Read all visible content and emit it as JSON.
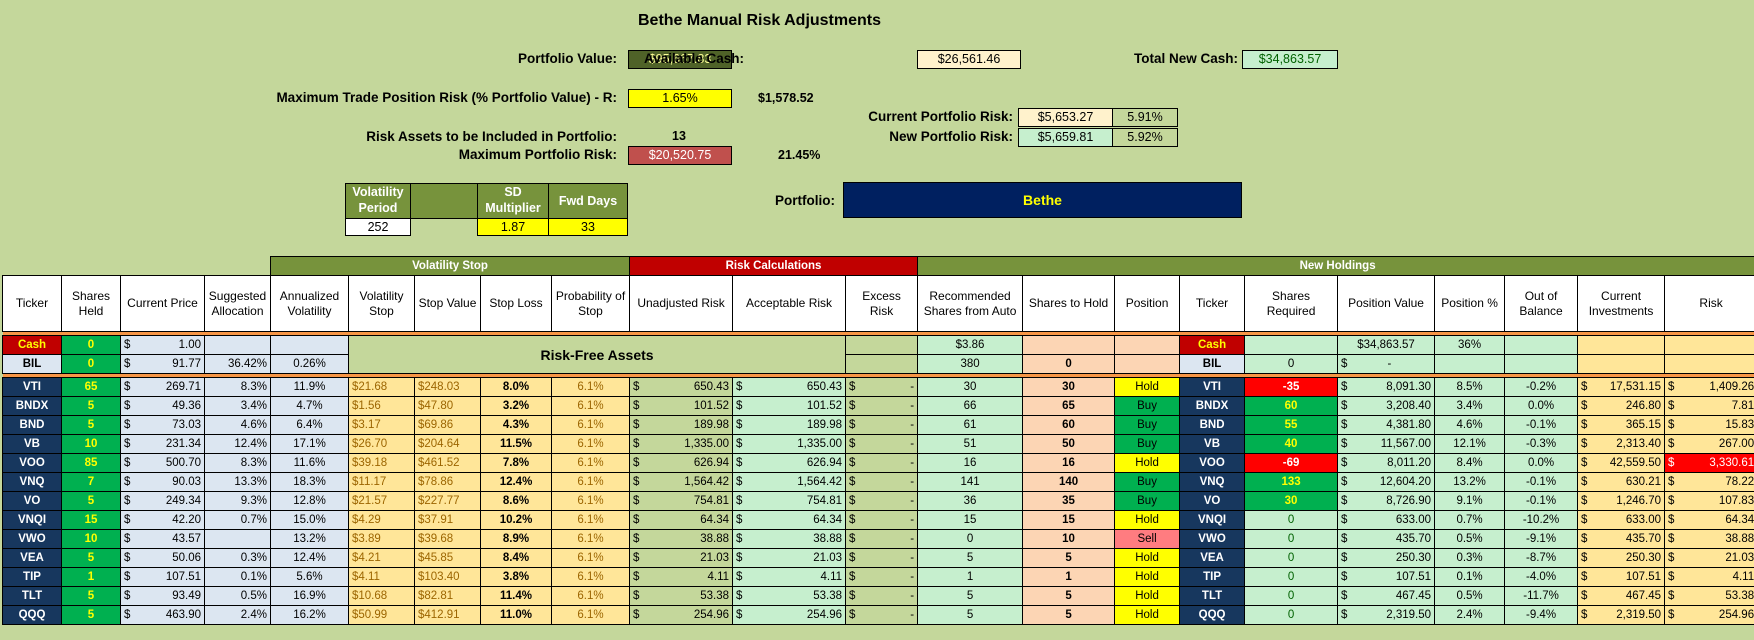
{
  "title": "Bethe Manual Risk Adjustments",
  "summary": {
    "portfolio_value_label": "Portfolio Value:",
    "portfolio_value": "$95,667.83",
    "available_cash_label": "Available Cash:",
    "available_cash": "$26,561.46",
    "total_new_cash_label": "Total New Cash:",
    "total_new_cash": "$34,863.57",
    "max_trade_risk_label": "Maximum Trade Position Risk (% Portfolio Value) - R:",
    "max_trade_risk_pct": "1.65%",
    "max_trade_risk_value": "$1,578.52",
    "current_risk_label": "Current Portfolio Risk:",
    "current_risk_value": "$5,653.27",
    "current_risk_pct": "5.91%",
    "new_risk_label": "New Portfolio Risk:",
    "new_risk_value": "$5,659.81",
    "new_risk_pct": "5.92%",
    "risk_assets_label": "Risk Assets to be Included in Portfolio:",
    "risk_assets_count": "13",
    "max_portfolio_risk_label": "Maximum Portfolio Risk:",
    "max_portfolio_risk_value": "$20,520.75",
    "max_portfolio_risk_pct": "21.45%",
    "portfolio_label": "Portfolio:",
    "portfolio_name": "Bethe"
  },
  "params": {
    "vol_period_label": "Volatility Period",
    "sd_mult_label": "SD Multiplier",
    "fwd_days_label": "Fwd Days",
    "vol_period": "252",
    "sd_mult": "1.87",
    "fwd_days": "33"
  },
  "groups": {
    "vol_stop": "Volatility Stop",
    "risk_calc": "Risk Calculations",
    "new_holdings": "New Holdings"
  },
  "headers": [
    "Ticker",
    "Shares Held",
    "Current Price",
    "Suggested Allocation",
    "Annualized Volatility",
    "Volatility Stop",
    "Stop Value",
    "Stop Loss",
    "Probability of Stop",
    "Unadjusted Risk",
    "Acceptable Risk",
    "Excess Risk",
    "Recommended Shares from Auto",
    "Shares to Hold",
    "Position",
    "Ticker",
    "Shares Required",
    "Position Value",
    "Position %",
    "Out of Balance",
    "Current Investments",
    "Risk"
  ],
  "risk_free_label": "Risk-Free Assets",
  "cash_row": {
    "ticker": "Cash",
    "shares": "0",
    "price": "1.00",
    "rec": "$3.86",
    "ticker2": "Cash",
    "pos_value": "$34,863.57",
    "pos_pct": "36%"
  },
  "bil_row": {
    "ticker": "BIL",
    "shares": "0",
    "price": "91.77",
    "alloc": "36.42%",
    "vol": "0.26%",
    "rec": "380",
    "hold": "0",
    "ticker2": "BIL",
    "req": "0",
    "pos_value": "-"
  },
  "dollar": "$",
  "rows": [
    {
      "t": "VTI",
      "sh": "65",
      "p": "269.71",
      "a": "8.3%",
      "v": "11.9%",
      "vs": "$21.68",
      "sv": "$248.03",
      "sl": "8.0%",
      "ps": "6.1%",
      "ur": "650.43",
      "ar": "650.43",
      "er": "-",
      "rec": "30",
      "hold": "30",
      "pos": "Hold",
      "req": "-35",
      "rq": "red",
      "pv": "8,091.30",
      "pp": "8.5%",
      "ob": "-0.2%",
      "ci": "17,531.15",
      "risk": "1,409.26",
      "rr": ""
    },
    {
      "t": "BNDX",
      "sh": "5",
      "p": "49.36",
      "a": "3.4%",
      "v": "4.7%",
      "vs": "$1.56",
      "sv": "$47.80",
      "sl": "3.2%",
      "ps": "6.1%",
      "ur": "101.52",
      "ar": "101.52",
      "er": "-",
      "rec": "66",
      "hold": "65",
      "pos": "Buy",
      "req": "60",
      "rq": "green",
      "pv": "3,208.40",
      "pp": "3.4%",
      "ob": "0.0%",
      "ci": "246.80",
      "risk": "7.81",
      "rr": ""
    },
    {
      "t": "BND",
      "sh": "5",
      "p": "73.03",
      "a": "4.6%",
      "v": "6.4%",
      "vs": "$3.17",
      "sv": "$69.86",
      "sl": "4.3%",
      "ps": "6.1%",
      "ur": "189.98",
      "ar": "189.98",
      "er": "-",
      "rec": "61",
      "hold": "60",
      "pos": "Buy",
      "req": "55",
      "rq": "green",
      "pv": "4,381.80",
      "pp": "4.6%",
      "ob": "-0.1%",
      "ci": "365.15",
      "risk": "15.83",
      "rr": ""
    },
    {
      "t": "VB",
      "sh": "10",
      "p": "231.34",
      "a": "12.4%",
      "v": "17.1%",
      "vs": "$26.70",
      "sv": "$204.64",
      "sl": "11.5%",
      "ps": "6.1%",
      "ur": "1,335.00",
      "ar": "1,335.00",
      "er": "-",
      "rec": "51",
      "hold": "50",
      "pos": "Buy",
      "req": "40",
      "rq": "green",
      "pv": "11,567.00",
      "pp": "12.1%",
      "ob": "-0.3%",
      "ci": "2,313.40",
      "risk": "267.00",
      "rr": ""
    },
    {
      "t": "VOO",
      "sh": "85",
      "p": "500.70",
      "a": "8.3%",
      "v": "11.6%",
      "vs": "$39.18",
      "sv": "$461.52",
      "sl": "7.8%",
      "ps": "6.1%",
      "ur": "626.94",
      "ar": "626.94",
      "er": "-",
      "rec": "16",
      "hold": "16",
      "pos": "Hold",
      "req": "-69",
      "rq": "red",
      "pv": "8,011.20",
      "pp": "8.4%",
      "ob": "0.0%",
      "ci": "42,559.50",
      "risk": "3,330.61",
      "rr": "red"
    },
    {
      "t": "VNQ",
      "sh": "7",
      "p": "90.03",
      "a": "13.3%",
      "v": "18.3%",
      "vs": "$11.17",
      "sv": "$78.86",
      "sl": "12.4%",
      "ps": "6.1%",
      "ur": "1,564.42",
      "ar": "1,564.42",
      "er": "-",
      "rec": "141",
      "hold": "140",
      "pos": "Buy",
      "req": "133",
      "rq": "green",
      "pv": "12,604.20",
      "pp": "13.2%",
      "ob": "-0.1%",
      "ci": "630.21",
      "risk": "78.22",
      "rr": ""
    },
    {
      "t": "VO",
      "sh": "5",
      "p": "249.34",
      "a": "9.3%",
      "v": "12.8%",
      "vs": "$21.57",
      "sv": "$227.77",
      "sl": "8.6%",
      "ps": "6.1%",
      "ur": "754.81",
      "ar": "754.81",
      "er": "-",
      "rec": "36",
      "hold": "35",
      "pos": "Buy",
      "req": "30",
      "rq": "green",
      "pv": "8,726.90",
      "pp": "9.1%",
      "ob": "-0.1%",
      "ci": "1,246.70",
      "risk": "107.83",
      "rr": ""
    },
    {
      "t": "VNQI",
      "sh": "15",
      "p": "42.20",
      "a": "0.7%",
      "v": "15.0%",
      "vs": "$4.29",
      "sv": "$37.91",
      "sl": "10.2%",
      "ps": "6.1%",
      "ur": "64.34",
      "ar": "64.34",
      "er": "-",
      "rec": "15",
      "hold": "15",
      "pos": "Hold",
      "req": "0",
      "rq": "",
      "pv": "633.00",
      "pp": "0.7%",
      "ob": "-10.2%",
      "ci": "633.00",
      "risk": "64.34",
      "rr": ""
    },
    {
      "t": "VWO",
      "sh": "10",
      "p": "43.57",
      "a": "",
      "v": "13.2%",
      "vs": "$3.89",
      "sv": "$39.68",
      "sl": "8.9%",
      "ps": "6.1%",
      "ur": "38.88",
      "ar": "38.88",
      "er": "-",
      "rec": "0",
      "hold": "10",
      "pos": "Sell",
      "req": "0",
      "rq": "",
      "pv": "435.70",
      "pp": "0.5%",
      "ob": "-9.1%",
      "ci": "435.70",
      "risk": "38.88",
      "rr": ""
    },
    {
      "t": "VEA",
      "sh": "5",
      "p": "50.06",
      "a": "0.3%",
      "v": "12.4%",
      "vs": "$4.21",
      "sv": "$45.85",
      "sl": "8.4%",
      "ps": "6.1%",
      "ur": "21.03",
      "ar": "21.03",
      "er": "-",
      "rec": "5",
      "hold": "5",
      "pos": "Hold",
      "req": "0",
      "rq": "",
      "pv": "250.30",
      "pp": "0.3%",
      "ob": "-8.7%",
      "ci": "250.30",
      "risk": "21.03",
      "rr": ""
    },
    {
      "t": "TIP",
      "sh": "1",
      "p": "107.51",
      "a": "0.1%",
      "v": "5.6%",
      "vs": "$4.11",
      "sv": "$103.40",
      "sl": "3.8%",
      "ps": "6.1%",
      "ur": "4.11",
      "ar": "4.11",
      "er": "-",
      "rec": "1",
      "hold": "1",
      "pos": "Hold",
      "req": "0",
      "rq": "",
      "pv": "107.51",
      "pp": "0.1%",
      "ob": "-4.0%",
      "ci": "107.51",
      "risk": "4.11",
      "rr": ""
    },
    {
      "t": "TLT",
      "sh": "5",
      "p": "93.49",
      "a": "0.5%",
      "v": "16.9%",
      "vs": "$10.68",
      "sv": "$82.81",
      "sl": "11.4%",
      "ps": "6.1%",
      "ur": "53.38",
      "ar": "53.38",
      "er": "-",
      "rec": "5",
      "hold": "5",
      "pos": "Hold",
      "req": "0",
      "rq": "",
      "pv": "467.45",
      "pp": "0.5%",
      "ob": "-11.7%",
      "ci": "467.45",
      "risk": "53.38",
      "rr": ""
    },
    {
      "t": "QQQ",
      "sh": "5",
      "p": "463.90",
      "a": "2.4%",
      "v": "16.2%",
      "vs": "$50.99",
      "sv": "$412.91",
      "sl": "11.0%",
      "ps": "6.1%",
      "ur": "254.96",
      "ar": "254.96",
      "er": "-",
      "rec": "5",
      "hold": "5",
      "pos": "Hold",
      "req": "0",
      "rq": "",
      "pv": "2,319.50",
      "pp": "2.4%",
      "ob": "-9.4%",
      "ci": "2,319.50",
      "risk": "254.96",
      "rr": ""
    }
  ]
}
